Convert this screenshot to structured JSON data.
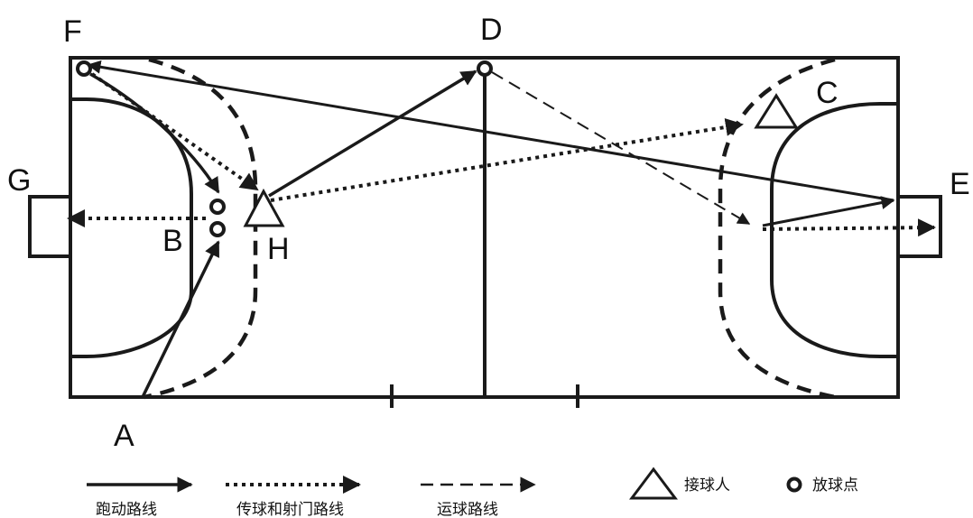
{
  "diagram": {
    "point_labels": {
      "A": "A",
      "B": "B",
      "C": "C",
      "D": "D",
      "E": "E",
      "F": "F",
      "G": "G",
      "H": "H"
    },
    "legend": {
      "run_route": "跑动路线",
      "pass_shoot_route": "传球和射门路线",
      "dribble_route": "运球路线",
      "receiver": "接球人",
      "ball_spot": "放球点"
    },
    "colors": {
      "ink": "#1a1a1a",
      "background": "#ffffff"
    }
  }
}
